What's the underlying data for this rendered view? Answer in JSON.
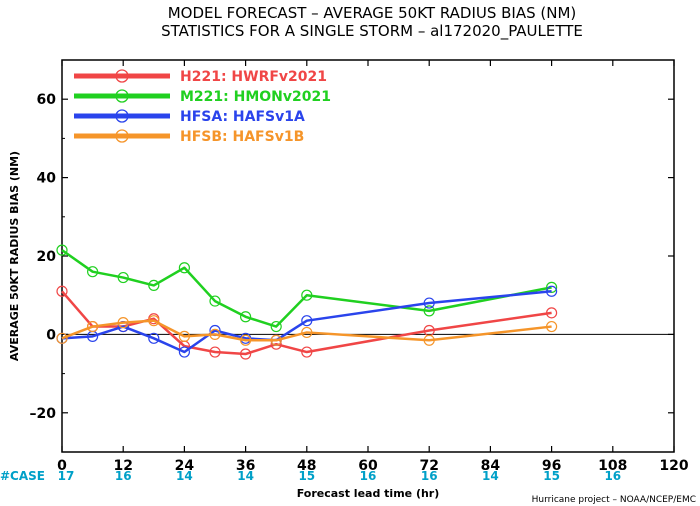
{
  "chart_data": {
    "type": "line",
    "title_line1": "MODEL FORECAST – AVERAGE 50KT RADIUS BIAS (NM)",
    "title_line2": "STATISTICS FOR A SINGLE STORM – al172020_PAULETTE",
    "ylabel": "AVERAGE 50KT RADIUS BIAS (NM)",
    "xlabel": "Forecast lead time (hr)",
    "credit": "Hurricane project – NOAA/NCEP/EMC",
    "xlim": [
      0,
      120
    ],
    "ylim": [
      -30,
      70
    ],
    "xticks": [
      "0",
      "12",
      "24",
      "36",
      "48",
      "60",
      "72",
      "84",
      "96",
      "108",
      "120"
    ],
    "yticks": [
      "60",
      "40",
      "20",
      "0",
      "–20"
    ],
    "xtick_values": [
      0,
      12,
      24,
      36,
      48,
      60,
      72,
      84,
      96,
      108,
      120
    ],
    "ytick_values": [
      60,
      40,
      20,
      0,
      -20
    ],
    "zero_line": true,
    "legend_position": "top-left",
    "case_label": "#CASE",
    "case_color": "#00a0c8",
    "cases": [
      {
        "x": 0,
        "text": "17"
      },
      {
        "x": 12,
        "text": "16"
      },
      {
        "x": 24,
        "text": "14"
      },
      {
        "x": 36,
        "text": "14"
      },
      {
        "x": 48,
        "text": "15"
      },
      {
        "x": 60,
        "text": "16"
      },
      {
        "x": 72,
        "text": "16"
      },
      {
        "x": 84,
        "text": "14"
      },
      {
        "x": 96,
        "text": "15"
      },
      {
        "x": 108,
        "text": "16"
      }
    ],
    "series": [
      {
        "name": "H221: HWRFv2021",
        "color": "#f04646",
        "points": [
          [
            0,
            11
          ],
          [
            6,
            2
          ],
          [
            12,
            2
          ],
          [
            18,
            4
          ],
          [
            24,
            -3
          ],
          [
            30,
            -4.5
          ],
          [
            36,
            -5
          ],
          [
            42,
            -2.5
          ],
          [
            48,
            -4.5
          ],
          [
            72,
            1
          ],
          [
            96,
            5.5
          ]
        ]
      },
      {
        "name": "M221: HMONv2021",
        "color": "#20d020",
        "points": [
          [
            0,
            21.5
          ],
          [
            6,
            16
          ],
          [
            12,
            14.5
          ],
          [
            18,
            12.5
          ],
          [
            24,
            17
          ],
          [
            30,
            8.5
          ],
          [
            36,
            4.5
          ],
          [
            42,
            2
          ],
          [
            48,
            10
          ],
          [
            72,
            6
          ],
          [
            96,
            12
          ]
        ]
      },
      {
        "name": "HFSA: HAFSv1A",
        "color": "#2a44ec",
        "points": [
          [
            0,
            -1
          ],
          [
            6,
            -0.5
          ],
          [
            12,
            2
          ],
          [
            18,
            -1
          ],
          [
            24,
            -4.5
          ],
          [
            30,
            1
          ],
          [
            36,
            -1
          ],
          [
            42,
            -1.5
          ],
          [
            48,
            3.5
          ],
          [
            72,
            8
          ],
          [
            96,
            11
          ]
        ]
      },
      {
        "name": "HFSB: HAFSv1B",
        "color": "#f5952a",
        "points": [
          [
            0,
            -1
          ],
          [
            6,
            2
          ],
          [
            12,
            3
          ],
          [
            18,
            3.5
          ],
          [
            24,
            -0.5
          ],
          [
            30,
            0
          ],
          [
            36,
            -1.5
          ],
          [
            42,
            -1.5
          ],
          [
            48,
            0.5
          ],
          [
            72,
            -1.5
          ],
          [
            96,
            2
          ]
        ]
      }
    ]
  }
}
